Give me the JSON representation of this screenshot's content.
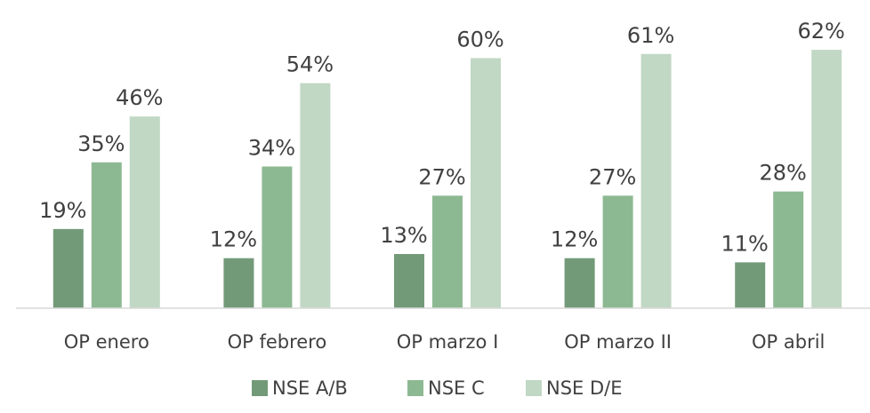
{
  "chart_data": {
    "type": "bar",
    "categories": [
      "OP enero",
      "OP febrero",
      "OP marzo I",
      "OP marzo II",
      "OP abril"
    ],
    "series": [
      {
        "name": "NSE A/B",
        "color": "#739a78",
        "values": [
          19,
          12,
          13,
          12,
          11
        ],
        "value_labels": [
          "19%",
          "12%",
          "13%",
          "12%",
          "11%"
        ]
      },
      {
        "name": "NSE C",
        "color": "#8db992",
        "values": [
          35,
          34,
          27,
          27,
          28
        ],
        "value_labels": [
          "35%",
          "34%",
          "27%",
          "27%",
          "28%"
        ]
      },
      {
        "name": "NSE D/E",
        "color": "#c1d8c4",
        "values": [
          46,
          54,
          60,
          61,
          62
        ],
        "value_labels": [
          "46%",
          "54%",
          "60%",
          "61%",
          "62%"
        ]
      }
    ],
    "ylim": [
      0,
      65
    ],
    "legend": "bottom"
  }
}
